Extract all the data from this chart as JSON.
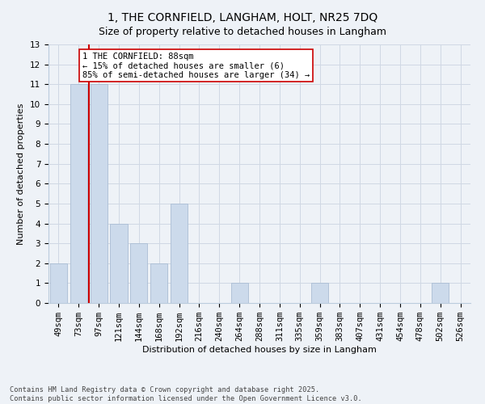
{
  "title": "1, THE CORNFIELD, LANGHAM, HOLT, NR25 7DQ",
  "subtitle": "Size of property relative to detached houses in Langham",
  "xlabel": "Distribution of detached houses by size in Langham",
  "ylabel": "Number of detached properties",
  "categories": [
    "49sqm",
    "73sqm",
    "97sqm",
    "121sqm",
    "144sqm",
    "168sqm",
    "192sqm",
    "216sqm",
    "240sqm",
    "264sqm",
    "288sqm",
    "311sqm",
    "335sqm",
    "359sqm",
    "383sqm",
    "407sqm",
    "431sqm",
    "454sqm",
    "478sqm",
    "502sqm",
    "526sqm"
  ],
  "values": [
    2,
    11,
    11,
    4,
    3,
    2,
    5,
    0,
    0,
    1,
    0,
    0,
    0,
    1,
    0,
    0,
    0,
    0,
    0,
    1,
    0
  ],
  "bar_color": "#ccdaeb",
  "bar_edge_color": "#aabdd4",
  "redline_x": 1.5,
  "annotation_text": "1 THE CORNFIELD: 88sqm\n← 15% of detached houses are smaller (6)\n85% of semi-detached houses are larger (34) →",
  "annotation_box_color": "white",
  "annotation_box_edge": "#cc0000",
  "ylim": [
    0,
    13
  ],
  "yticks": [
    0,
    1,
    2,
    3,
    4,
    5,
    6,
    7,
    8,
    9,
    10,
    11,
    12,
    13
  ],
  "title_fontsize": 10,
  "xlabel_fontsize": 8,
  "ylabel_fontsize": 8,
  "tick_fontsize": 7.5,
  "footer_text": "Contains HM Land Registry data © Crown copyright and database right 2025.\nContains public sector information licensed under the Open Government Licence v3.0.",
  "background_color": "#eef2f7",
  "plot_background": "#eef2f7",
  "grid_color": "#d0d8e4"
}
